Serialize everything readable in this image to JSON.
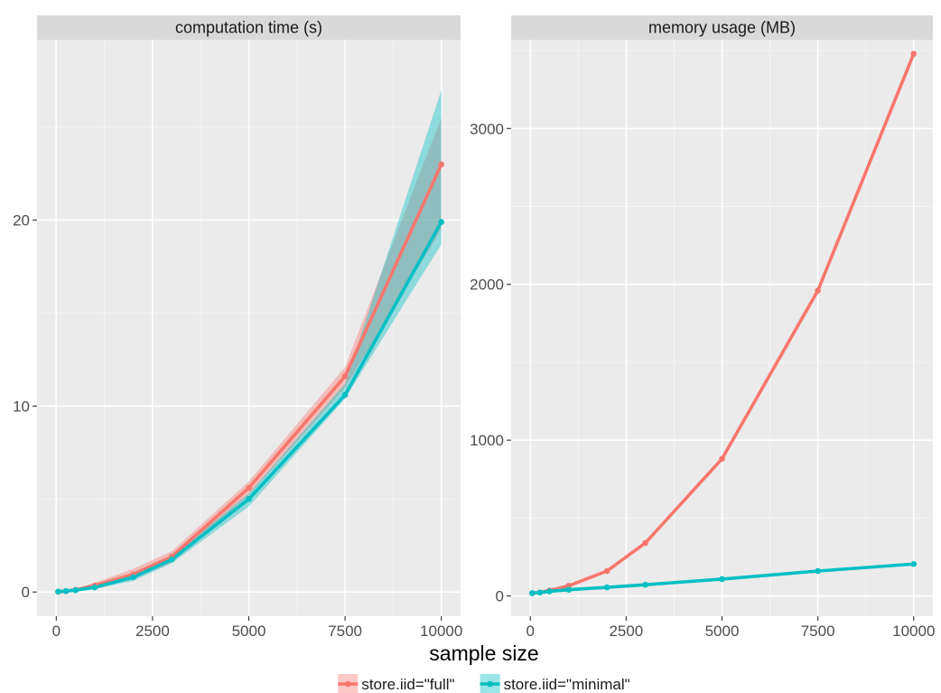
{
  "chart_data": {
    "type": "line",
    "xlabel": "sample size",
    "legend": {
      "placement": "bottom",
      "entries": [
        {
          "key": "full",
          "label": "store.iid=\"full\"",
          "color": "#F8766D"
        },
        {
          "key": "minimal",
          "label": "store.iid=\"minimal\"",
          "color": "#00BFC4"
        }
      ]
    },
    "panels": [
      {
        "title": "computation time (s)",
        "xlim": [
          -500,
          10500
        ],
        "ylim": [
          -1.3,
          29.7
        ],
        "x_ticks": [
          0,
          2500,
          5000,
          7500,
          10000
        ],
        "x_tick_labels": [
          "0",
          "2500",
          "5000",
          "7500",
          "10000"
        ],
        "y_ticks": [
          0,
          10,
          20
        ],
        "y_tick_labels": [
          "0",
          "10",
          "20"
        ],
        "series": [
          {
            "key": "full",
            "x": [
              50,
              250,
              500,
              1000,
              2000,
              3000,
              5000,
              7500,
              10000
            ],
            "y": [
              0.02,
              0.05,
              0.12,
              0.35,
              0.95,
              1.9,
              5.6,
              11.6,
              23.0
            ],
            "lower": [
              0.01,
              0.03,
              0.08,
              0.25,
              0.7,
              1.6,
              5.2,
              11.0,
              19.5
            ],
            "upper": [
              0.04,
              0.08,
              0.18,
              0.5,
              1.25,
              2.2,
              5.95,
              12.1,
              25.5
            ]
          },
          {
            "key": "minimal",
            "x": [
              50,
              250,
              500,
              1000,
              2000,
              3000,
              5000,
              7500,
              10000
            ],
            "y": [
              0.02,
              0.05,
              0.1,
              0.25,
              0.8,
              1.75,
              5.0,
              10.6,
              19.9
            ],
            "lower": [
              0.01,
              0.03,
              0.06,
              0.18,
              0.6,
              1.55,
              4.6,
              10.4,
              18.7
            ],
            "upper": [
              0.04,
              0.08,
              0.15,
              0.35,
              1.0,
              1.95,
              5.3,
              11.2,
              27.0
            ]
          }
        ]
      },
      {
        "title": "memory usage (MB)",
        "xlim": [
          -500,
          10500
        ],
        "ylim": [
          -130,
          3570
        ],
        "x_ticks": [
          0,
          2500,
          5000,
          7500,
          10000
        ],
        "x_tick_labels": [
          "0",
          "2500",
          "5000",
          "7500",
          "10000"
        ],
        "y_ticks": [
          0,
          1000,
          2000,
          3000
        ],
        "y_tick_labels": [
          "0",
          "1000",
          "2000",
          "3000"
        ],
        "series": [
          {
            "key": "full",
            "x": [
              50,
              250,
              500,
              1000,
              2000,
              3000,
              5000,
              7500,
              10000
            ],
            "y": [
              18,
              22,
              35,
              65,
              160,
              340,
              880,
              1960,
              3480
            ]
          },
          {
            "key": "minimal",
            "x": [
              50,
              250,
              500,
              1000,
              2000,
              3000,
              5000,
              7500,
              10000
            ],
            "y": [
              18,
              22,
              30,
              40,
              55,
              72,
              108,
              160,
              205
            ]
          }
        ]
      }
    ]
  }
}
